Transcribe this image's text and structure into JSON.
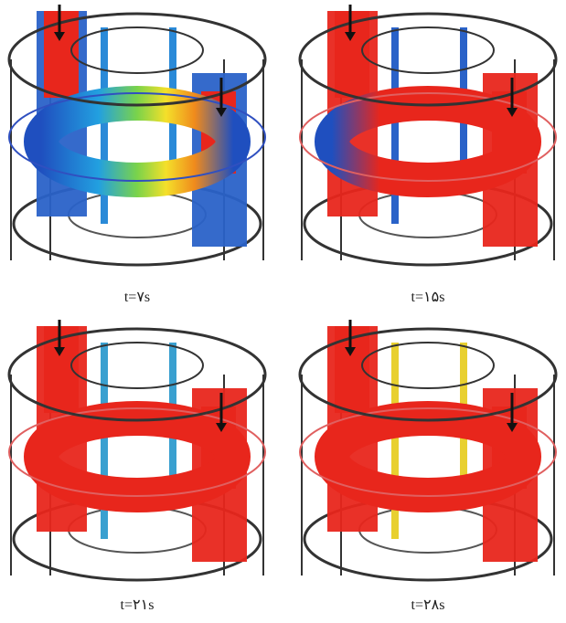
{
  "panels": [
    {
      "caption": "t=۷s"
    },
    {
      "caption": "t=۱۵s"
    },
    {
      "caption": "t=۲۱s"
    },
    {
      "caption": "t=۲۸s"
    }
  ]
}
